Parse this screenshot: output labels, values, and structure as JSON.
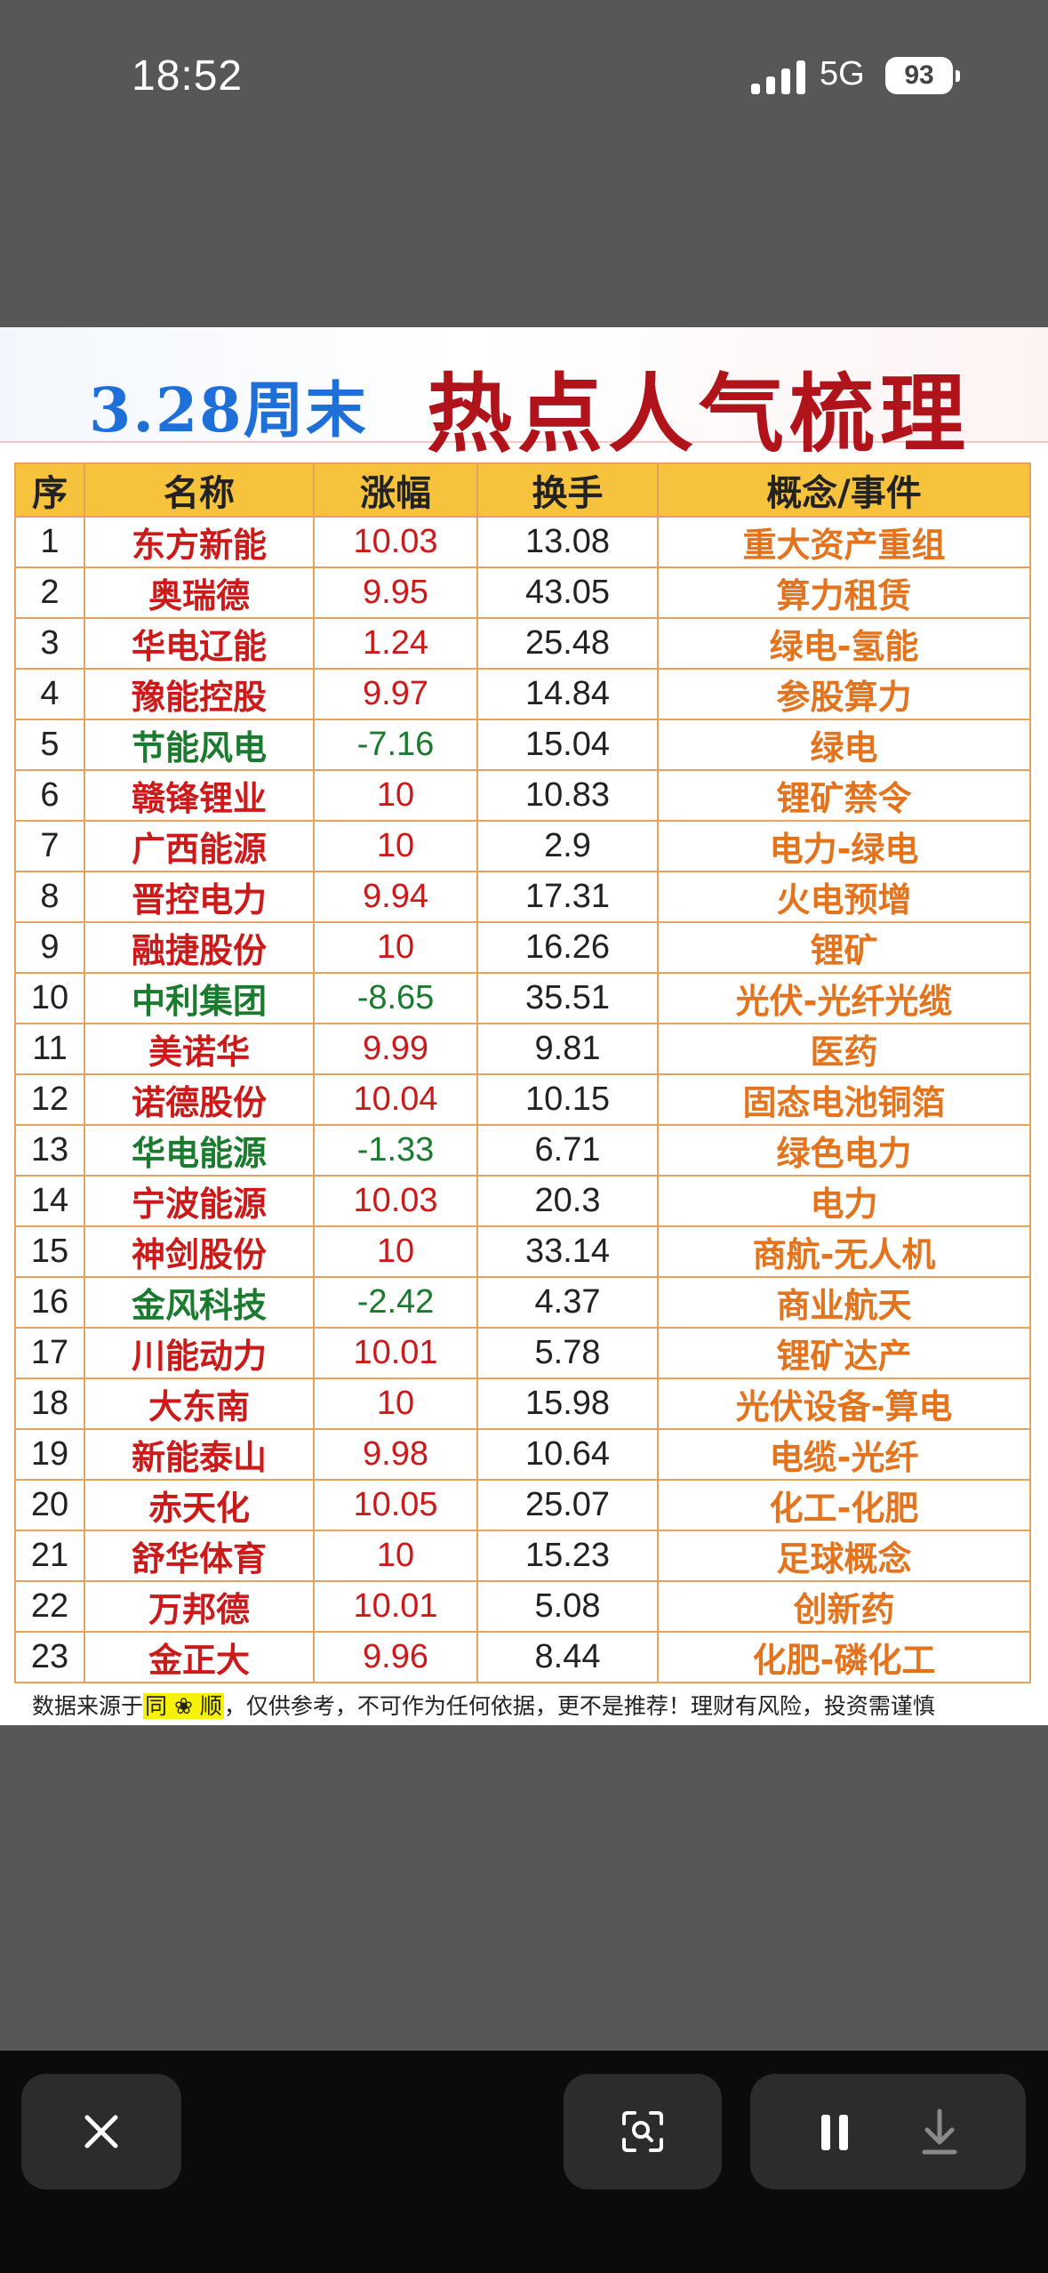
{
  "status_bar": {
    "time": "18:52",
    "network": "5G",
    "battery": "93"
  },
  "header": {
    "title_left": "3.28周末",
    "title_right": "热点人气梳理"
  },
  "table": {
    "columns": [
      "序",
      "名称",
      "涨幅",
      "换手",
      "概念/事件"
    ],
    "rows": [
      {
        "idx": "1",
        "name": "东方新能",
        "change": "10.03",
        "turnover": "13.08",
        "concept": "重大资产重组",
        "dir": "up"
      },
      {
        "idx": "2",
        "name": "奥瑞德",
        "change": "9.95",
        "turnover": "43.05",
        "concept": "算力租赁",
        "dir": "up"
      },
      {
        "idx": "3",
        "name": "华电辽能",
        "change": "1.24",
        "turnover": "25.48",
        "concept": "绿电-氢能",
        "dir": "up"
      },
      {
        "idx": "4",
        "name": "豫能控股",
        "change": "9.97",
        "turnover": "14.84",
        "concept": "参股算力",
        "dir": "up"
      },
      {
        "idx": "5",
        "name": "节能风电",
        "change": "-7.16",
        "turnover": "15.04",
        "concept": "绿电",
        "dir": "down"
      },
      {
        "idx": "6",
        "name": "赣锋锂业",
        "change": "10",
        "turnover": "10.83",
        "concept": "锂矿禁令",
        "dir": "up"
      },
      {
        "idx": "7",
        "name": "广西能源",
        "change": "10",
        "turnover": "2.9",
        "concept": "电力-绿电",
        "dir": "up"
      },
      {
        "idx": "8",
        "name": "晋控电力",
        "change": "9.94",
        "turnover": "17.31",
        "concept": "火电预增",
        "dir": "up"
      },
      {
        "idx": "9",
        "name": "融捷股份",
        "change": "10",
        "turnover": "16.26",
        "concept": "锂矿",
        "dir": "up"
      },
      {
        "idx": "10",
        "name": "中利集团",
        "change": "-8.65",
        "turnover": "35.51",
        "concept": "光伏-光纤光缆",
        "dir": "down"
      },
      {
        "idx": "11",
        "name": "美诺华",
        "change": "9.99",
        "turnover": "9.81",
        "concept": "医药",
        "dir": "up"
      },
      {
        "idx": "12",
        "name": "诺德股份",
        "change": "10.04",
        "turnover": "10.15",
        "concept": "固态电池铜箔",
        "dir": "up"
      },
      {
        "idx": "13",
        "name": "华电能源",
        "change": "-1.33",
        "turnover": "6.71",
        "concept": "绿色电力",
        "dir": "down"
      },
      {
        "idx": "14",
        "name": "宁波能源",
        "change": "10.03",
        "turnover": "20.3",
        "concept": "电力",
        "dir": "up"
      },
      {
        "idx": "15",
        "name": "神剑股份",
        "change": "10",
        "turnover": "33.14",
        "concept": "商航-无人机",
        "dir": "up"
      },
      {
        "idx": "16",
        "name": "金风科技",
        "change": "-2.42",
        "turnover": "4.37",
        "concept": "商业航天",
        "dir": "down"
      },
      {
        "idx": "17",
        "name": "川能动力",
        "change": "10.01",
        "turnover": "5.78",
        "concept": "锂矿达产",
        "dir": "up"
      },
      {
        "idx": "18",
        "name": "大东南",
        "change": "10",
        "turnover": "15.98",
        "concept": "光伏设备-算电",
        "dir": "up"
      },
      {
        "idx": "19",
        "name": "新能泰山",
        "change": "9.98",
        "turnover": "10.64",
        "concept": "电缆-光纤",
        "dir": "up"
      },
      {
        "idx": "20",
        "name": "赤天化",
        "change": "10.05",
        "turnover": "25.07",
        "concept": "化工-化肥",
        "dir": "up"
      },
      {
        "idx": "21",
        "name": "舒华体育",
        "change": "10",
        "turnover": "15.23",
        "concept": "足球概念",
        "dir": "up"
      },
      {
        "idx": "22",
        "name": "万邦德",
        "change": "10.01",
        "turnover": "5.08",
        "concept": "创新药",
        "dir": "up"
      },
      {
        "idx": "23",
        "name": "金正大",
        "change": "9.96",
        "turnover": "8.44",
        "concept": "化肥-磷化工",
        "dir": "up"
      }
    ]
  },
  "footnote": {
    "prefix": "数据来源于",
    "source": "同 ❀ 顺",
    "suffix": "，仅供参考，不可作为任何依据，更不是推荐！理财有风险，投资需谨慎"
  },
  "bottom_bar": {
    "close": "close-icon",
    "scan": "visual-search-icon",
    "pause": "pause-icon",
    "download": "download-icon"
  },
  "colors": {
    "up": "#cc1a1a",
    "down": "#1a7a2e",
    "header_bg": "#f7c33d",
    "concept": "#e4731d",
    "title_blue": "#1f6fd9",
    "title_red": "#b0141a"
  }
}
